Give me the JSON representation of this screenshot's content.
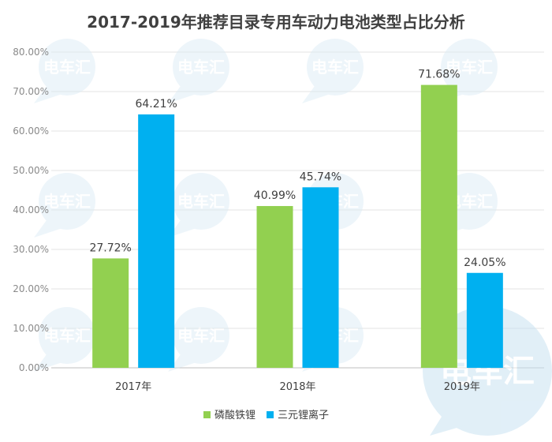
{
  "chart_data": {
    "type": "bar",
    "title": "2017-2019年推荐目录专用车动力电池类型占比分析",
    "categories": [
      "2017年",
      "2018年",
      "2019年"
    ],
    "series": [
      {
        "name": "磷酸铁锂",
        "values": [
          27.72,
          40.99,
          71.68
        ],
        "color": "#92d050"
      },
      {
        "name": "三元锂离子",
        "values": [
          64.21,
          45.74,
          24.05
        ],
        "color": "#00b0f0"
      }
    ],
    "data_labels": [
      [
        "27.72%",
        "40.99%",
        "71.68%"
      ],
      [
        "64.21%",
        "45.74%",
        "24.05%"
      ]
    ],
    "ylim": [
      0,
      80
    ],
    "yticks": [
      "0.00%",
      "10.00%",
      "20.00%",
      "30.00%",
      "40.00%",
      "50.00%",
      "60.00%",
      "70.00%",
      "80.00%"
    ],
    "grid": true,
    "legend_position": "bottom",
    "watermark": "电车汇"
  }
}
